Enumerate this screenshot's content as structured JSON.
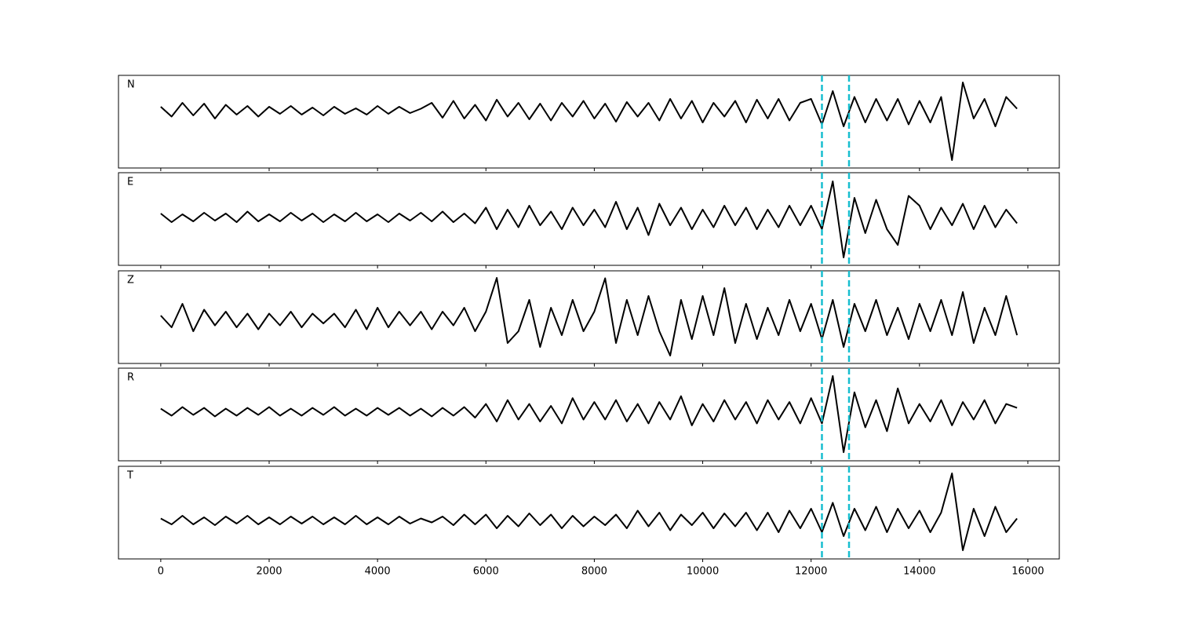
{
  "chart_data": {
    "type": "stacked-line",
    "x": [
      0,
      200,
      400,
      600,
      800,
      1000,
      1200,
      1400,
      1600,
      1800,
      2000,
      2200,
      2400,
      2600,
      2800,
      3000,
      3200,
      3400,
      3600,
      3800,
      4000,
      4200,
      4400,
      4600,
      4800,
      5000,
      5200,
      5400,
      5600,
      5800,
      6000,
      6200,
      6400,
      6600,
      6800,
      7000,
      7200,
      7400,
      7600,
      7800,
      8000,
      8200,
      8400,
      8600,
      8800,
      9000,
      9200,
      9400,
      9600,
      9800,
      10000,
      10200,
      10400,
      10600,
      10800,
      11000,
      11200,
      11400,
      11600,
      11800,
      12000,
      12200,
      12400,
      12600,
      12800,
      13000,
      13200,
      13400,
      13600,
      13800,
      14000,
      14200,
      14400,
      14600,
      14800,
      15000,
      15200,
      15400,
      15600,
      15800
    ],
    "xlim": [
      -780,
      16580
    ],
    "xticks": [
      0,
      2000,
      4000,
      6000,
      8000,
      10000,
      12000,
      14000,
      16000
    ],
    "vlines": [
      12200,
      12700
    ],
    "vline_color": "#17becf",
    "series": [
      {
        "name": "N",
        "color": "#000000",
        "ylim": [
          -1.46,
          0.9
        ],
        "values": [
          0.1,
          -0.15,
          0.2,
          -0.12,
          0.18,
          -0.2,
          0.15,
          -0.1,
          0.12,
          -0.15,
          0.1,
          -0.08,
          0.12,
          -0.1,
          0.08,
          -0.12,
          0.1,
          -0.08,
          0.06,
          -0.1,
          0.12,
          -0.08,
          0.1,
          -0.06,
          0.05,
          0.2,
          -0.18,
          0.25,
          -0.2,
          0.15,
          -0.25,
          0.28,
          -0.15,
          0.2,
          -0.22,
          0.18,
          -0.25,
          0.2,
          -0.15,
          0.25,
          -0.2,
          0.18,
          -0.28,
          0.22,
          -0.15,
          0.2,
          -0.25,
          0.3,
          -0.2,
          0.25,
          -0.3,
          0.2,
          -0.15,
          0.25,
          -0.3,
          0.28,
          -0.2,
          0.3,
          -0.25,
          0.2,
          0.3,
          -0.35,
          0.5,
          -0.4,
          0.35,
          -0.3,
          0.3,
          -0.25,
          0.3,
          -0.35,
          0.25,
          -0.3,
          0.35,
          -1.26,
          0.72,
          -0.2,
          0.3,
          -0.4,
          0.35,
          0.05
        ]
      },
      {
        "name": "E",
        "color": "#000000",
        "ylim": [
          -1.22,
          1.14
        ],
        "values": [
          0.1,
          -0.12,
          0.08,
          -0.1,
          0.12,
          -0.08,
          0.1,
          -0.12,
          0.15,
          -0.1,
          0.08,
          -0.1,
          0.12,
          -0.08,
          0.1,
          -0.12,
          0.08,
          -0.1,
          0.12,
          -0.1,
          0.08,
          -0.12,
          0.1,
          -0.08,
          0.12,
          -0.1,
          0.15,
          -0.12,
          0.1,
          -0.15,
          0.25,
          -0.3,
          0.2,
          -0.25,
          0.3,
          -0.2,
          0.15,
          -0.3,
          0.25,
          -0.2,
          0.2,
          -0.25,
          0.4,
          -0.3,
          0.25,
          -0.45,
          0.35,
          -0.2,
          0.25,
          -0.3,
          0.2,
          -0.25,
          0.3,
          -0.2,
          0.25,
          -0.3,
          0.2,
          -0.25,
          0.3,
          -0.2,
          0.3,
          -0.3,
          0.92,
          -1.02,
          0.5,
          -0.4,
          0.45,
          -0.3,
          -0.7,
          0.55,
          0.3,
          -0.3,
          0.25,
          -0.2,
          0.35,
          -0.3,
          0.3,
          -0.25,
          0.2,
          -0.15
        ]
      },
      {
        "name": "Z",
        "color": "#000000",
        "ylim": [
          -1.12,
          1.24
        ],
        "values": [
          0.1,
          -0.2,
          0.4,
          -0.3,
          0.25,
          -0.15,
          0.2,
          -0.2,
          0.15,
          -0.25,
          0.15,
          -0.15,
          0.2,
          -0.2,
          0.15,
          -0.1,
          0.15,
          -0.2,
          0.25,
          -0.25,
          0.3,
          -0.2,
          0.2,
          -0.15,
          0.2,
          -0.25,
          0.2,
          -0.15,
          0.3,
          -0.3,
          0.2,
          1.06,
          -0.6,
          -0.3,
          0.5,
          -0.7,
          0.3,
          -0.4,
          0.5,
          -0.3,
          0.2,
          1.05,
          -0.6,
          0.5,
          -0.4,
          0.6,
          -0.3,
          -0.92,
          0.5,
          -0.5,
          0.6,
          -0.4,
          0.8,
          -0.6,
          0.4,
          -0.5,
          0.3,
          -0.4,
          0.5,
          -0.3,
          0.4,
          -0.5,
          0.5,
          -0.7,
          0.4,
          -0.3,
          0.5,
          -0.4,
          0.3,
          -0.5,
          0.4,
          -0.3,
          0.5,
          -0.4,
          0.7,
          -0.6,
          0.3,
          -0.4,
          0.6,
          -0.4
        ]
      },
      {
        "name": "R",
        "color": "#000000",
        "ylim": [
          -1.26,
          1.12
        ],
        "values": [
          0.08,
          -0.1,
          0.12,
          -0.08,
          0.1,
          -0.12,
          0.08,
          -0.1,
          0.1,
          -0.08,
          0.12,
          -0.1,
          0.08,
          -0.1,
          0.1,
          -0.08,
          0.12,
          -0.1,
          0.08,
          -0.1,
          0.1,
          -0.08,
          0.1,
          -0.1,
          0.08,
          -0.12,
          0.1,
          -0.1,
          0.12,
          -0.15,
          0.2,
          -0.25,
          0.3,
          -0.2,
          0.2,
          -0.25,
          0.15,
          -0.3,
          0.35,
          -0.2,
          0.25,
          -0.2,
          0.3,
          -0.25,
          0.2,
          -0.3,
          0.25,
          -0.2,
          0.4,
          -0.35,
          0.2,
          -0.25,
          0.3,
          -0.2,
          0.25,
          -0.3,
          0.3,
          -0.2,
          0.25,
          -0.3,
          0.35,
          -0.3,
          0.92,
          -1.04,
          0.5,
          -0.4,
          0.3,
          -0.5,
          0.6,
          -0.3,
          0.2,
          -0.25,
          0.3,
          -0.35,
          0.25,
          -0.2,
          0.3,
          -0.3,
          0.2,
          0.1
        ]
      },
      {
        "name": "T",
        "color": "#000000",
        "ylim": [
          -0.98,
          1.38
        ],
        "values": [
          0.05,
          -0.1,
          0.12,
          -0.1,
          0.08,
          -0.12,
          0.1,
          -0.08,
          0.12,
          -0.1,
          0.08,
          -0.1,
          0.1,
          -0.08,
          0.1,
          -0.1,
          0.08,
          -0.1,
          0.12,
          -0.1,
          0.08,
          -0.1,
          0.1,
          -0.08,
          0.05,
          -0.05,
          0.1,
          -0.12,
          0.15,
          -0.1,
          0.15,
          -0.2,
          0.12,
          -0.15,
          0.18,
          -0.12,
          0.15,
          -0.2,
          0.12,
          -0.15,
          0.1,
          -0.12,
          0.15,
          -0.2,
          0.25,
          -0.15,
          0.2,
          -0.25,
          0.15,
          -0.12,
          0.2,
          -0.2,
          0.18,
          -0.15,
          0.2,
          -0.25,
          0.2,
          -0.3,
          0.25,
          -0.2,
          0.3,
          -0.3,
          0.45,
          -0.4,
          0.3,
          -0.25,
          0.35,
          -0.3,
          0.3,
          -0.2,
          0.25,
          -0.3,
          0.2,
          1.2,
          -0.76,
          0.3,
          -0.4,
          0.35,
          -0.3,
          0.05
        ]
      }
    ]
  }
}
